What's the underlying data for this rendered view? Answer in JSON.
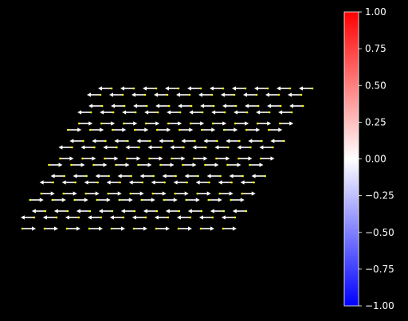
{
  "chart_data": {
    "type": "vector-field",
    "title": "",
    "xlabel": "",
    "ylabel": "",
    "background": "#000000",
    "arrow_color": "#ffffff",
    "arrow_tip_color": "#ffff00",
    "lattice": {
      "rows": 9,
      "cols": 10,
      "direction_by_row": [
        -1,
        -1,
        1,
        -1,
        1,
        -1,
        1,
        -1,
        1
      ]
    },
    "colorbar": {
      "colormap": "bwr",
      "min_color": "#0000ff",
      "mid_color": "#ffffff",
      "max_color": "#ff0000",
      "range": [
        -1.0,
        1.0
      ],
      "ticks": [
        "1.00",
        "0.75",
        "0.50",
        "0.25",
        "0.00",
        "−0.25",
        "−0.50",
        "−0.75",
        "−1.00"
      ]
    }
  }
}
